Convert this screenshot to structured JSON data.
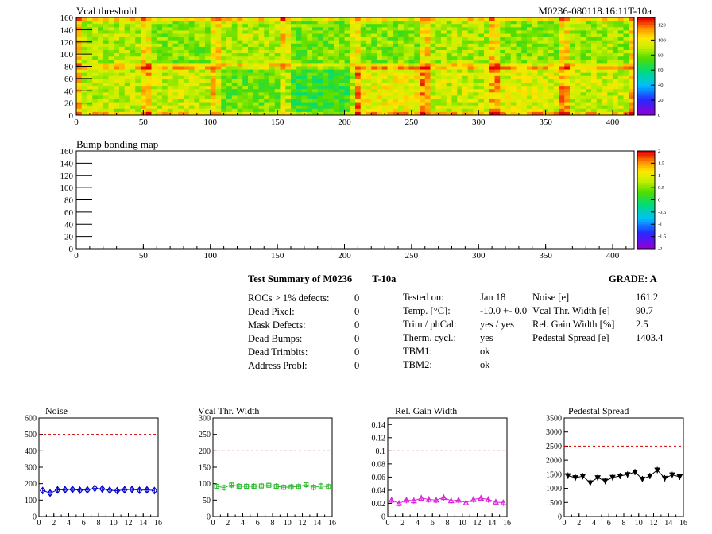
{
  "header": {
    "map1_title": "Vcal threshold",
    "map1_tag": "M0236-080118.16:11T-10a",
    "map2_title": "Bump bonding map"
  },
  "maps": {
    "xticks": [
      "0",
      "50",
      "100",
      "150",
      "200",
      "250",
      "300",
      "350",
      "400"
    ],
    "yticks": [
      "0",
      "20",
      "40",
      "60",
      "80",
      "100",
      "120",
      "140",
      "160"
    ],
    "scale1": [
      "0",
      "20",
      "40",
      "60",
      "80",
      "100",
      "120"
    ],
    "scale2": [
      "-2",
      "-1.5",
      "-1",
      "-0.5",
      "0",
      "0.5",
      "1",
      "1.5",
      "2"
    ]
  },
  "chart_data": [
    {
      "type": "heatmap",
      "title": "Vcal threshold",
      "x_range": [
        0,
        416
      ],
      "y_range": [
        0,
        160
      ],
      "z_range": [
        0,
        130
      ],
      "roc_grid": {
        "columns": 8,
        "rows": 2,
        "roc_width": 52,
        "roc_height": 80
      },
      "roc_levels": {
        "top": [
          88,
          82,
          88,
          80,
          82,
          88,
          82,
          85
        ],
        "bottom": [
          90,
          92,
          78,
          70,
          98,
          92,
          95,
          92
        ]
      }
    },
    {
      "type": "heatmap",
      "title": "Bump bonding map",
      "x_range": [
        0,
        416
      ],
      "y_range": [
        0,
        160
      ],
      "z_range": [
        -2,
        2
      ]
    },
    {
      "type": "line",
      "title": "Noise",
      "x": [
        0,
        1,
        2,
        3,
        4,
        5,
        6,
        7,
        8,
        9,
        10,
        11,
        12,
        13,
        14,
        15
      ],
      "values": [
        158,
        143,
        162,
        163,
        165,
        160,
        162,
        172,
        168,
        160,
        157,
        163,
        165,
        160,
        162,
        158
      ],
      "xlim": [
        0,
        16
      ],
      "ylim": [
        0,
        600
      ],
      "xticks": [
        "0",
        "2",
        "4",
        "6",
        "8",
        "10",
        "12",
        "14",
        "16"
      ],
      "yticks": [
        "0",
        "100",
        "200",
        "300",
        "400",
        "500",
        "600"
      ],
      "reference": 500,
      "color": "#0000cc",
      "marker": "diamond"
    },
    {
      "type": "line",
      "title": "Vcal Thr. Width",
      "x": [
        0,
        1,
        2,
        3,
        4,
        5,
        6,
        7,
        8,
        9,
        10,
        11,
        12,
        13,
        14,
        15
      ],
      "values": [
        92,
        88,
        96,
        92,
        92,
        92,
        93,
        95,
        92,
        89,
        90,
        91,
        97,
        89,
        93,
        91
      ],
      "xlim": [
        0,
        16
      ],
      "ylim": [
        0,
        300
      ],
      "xticks": [
        "0",
        "2",
        "4",
        "6",
        "8",
        "10",
        "12",
        "14",
        "16"
      ],
      "yticks": [
        "0",
        "50",
        "100",
        "150",
        "200",
        "250",
        "300"
      ],
      "reference": 200,
      "color": "#33bb33",
      "marker": "square"
    },
    {
      "type": "line",
      "title": "Rel. Gain Width",
      "x": [
        0,
        1,
        2,
        3,
        4,
        5,
        6,
        7,
        8,
        9,
        10,
        11,
        12,
        13,
        14,
        15
      ],
      "values": [
        0.025,
        0.02,
        0.025,
        0.024,
        0.028,
        0.026,
        0.025,
        0.029,
        0.024,
        0.025,
        0.021,
        0.026,
        0.028,
        0.026,
        0.022,
        0.021
      ],
      "xlim": [
        0,
        16
      ],
      "ylim": [
        0,
        0.15
      ],
      "xticks": [
        "0",
        "2",
        "4",
        "6",
        "8",
        "10",
        "12",
        "14",
        "16"
      ],
      "yticks": [
        "0",
        "0.02",
        "0.04",
        "0.06",
        "0.08",
        "0.1",
        "0.12",
        "0.14"
      ],
      "reference": 0.1,
      "color": "#dd22dd",
      "marker": "triangle-up"
    },
    {
      "type": "line",
      "title": "Pedestal Spread",
      "x": [
        0,
        1,
        2,
        3,
        4,
        5,
        6,
        7,
        8,
        9,
        10,
        11,
        12,
        13,
        14,
        15
      ],
      "values": [
        1450,
        1380,
        1430,
        1200,
        1380,
        1260,
        1390,
        1440,
        1490,
        1580,
        1330,
        1440,
        1650,
        1360,
        1480,
        1410
      ],
      "xlim": [
        0,
        16
      ],
      "ylim": [
        0,
        3500
      ],
      "xticks": [
        "0",
        "2",
        "4",
        "6",
        "8",
        "10",
        "12",
        "14",
        "16"
      ],
      "yticks": [
        "0",
        "500",
        "1000",
        "1500",
        "2000",
        "2500",
        "3000",
        "3500"
      ],
      "reference": 2500,
      "color": "#000000",
      "marker": "triangle-down"
    }
  ],
  "summary": {
    "title": "Test Summary of M0236",
    "temp_tag": "T-10a",
    "grade_label": "GRADE:  A",
    "defects": [
      {
        "label": "ROCs > 1% defects:",
        "value": "0"
      },
      {
        "label": "Dead Pixel:",
        "value": "0"
      },
      {
        "label": "Mask Defects:",
        "value": "0"
      },
      {
        "label": "Dead Bumps:",
        "value": "0"
      },
      {
        "label": "Dead Trimbits:",
        "value": "0"
      },
      {
        "label": "Address Probl:",
        "value": "0"
      }
    ],
    "conditions": [
      {
        "label": "Tested on:",
        "value": "Jan 18"
      },
      {
        "label": "Temp. [°C]:",
        "value": "-10.0 +- 0.0"
      },
      {
        "label": "Trim / phCal:",
        "value": "yes / yes"
      },
      {
        "label": "Therm. cycl.:",
        "value": "yes"
      },
      {
        "label": "TBM1:",
        "value": "ok"
      },
      {
        "label": "TBM2:",
        "value": "ok"
      }
    ],
    "results": [
      {
        "label": "Noise [e]",
        "value": "161.2"
      },
      {
        "label": "Vcal Thr. Width [e]",
        "value": "90.7"
      },
      {
        "label": "Rel. Gain Width [%]",
        "value": "2.5"
      },
      {
        "label": "Pedestal Spread [e]",
        "value": "1403.4"
      }
    ]
  }
}
